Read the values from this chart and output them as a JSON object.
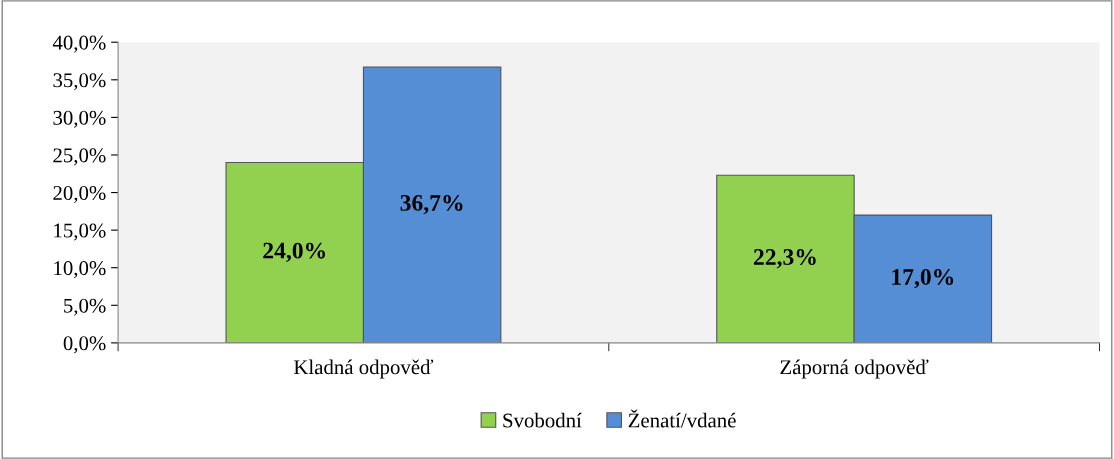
{
  "chart_data": {
    "type": "bar",
    "categories": [
      "Kladná odpověď",
      "Záporná odpověď"
    ],
    "series": [
      {
        "name": "Svobodní",
        "color": "#92d050",
        "values": [
          24.0,
          22.3
        ],
        "value_labels": [
          "24,0%",
          "22,3%"
        ]
      },
      {
        "name": "Ženatí/vdané",
        "color": "#558ed5",
        "values": [
          36.7,
          17.0
        ],
        "value_labels": [
          "36,7%",
          "17,0%"
        ]
      }
    ],
    "ylim": [
      0,
      40
    ],
    "yticks": [
      {
        "value": 0,
        "label": "0,0%"
      },
      {
        "value": 5,
        "label": "5,0%"
      },
      {
        "value": 10,
        "label": "10,0%"
      },
      {
        "value": 15,
        "label": "15,0%"
      },
      {
        "value": 20,
        "label": "20,0%"
      },
      {
        "value": 25,
        "label": "25,0%"
      },
      {
        "value": 30,
        "label": "30,0%"
      },
      {
        "value": 35,
        "label": "35,0%"
      },
      {
        "value": 40,
        "label": "40,0%"
      }
    ],
    "grid": false,
    "legend": "bottom"
  }
}
